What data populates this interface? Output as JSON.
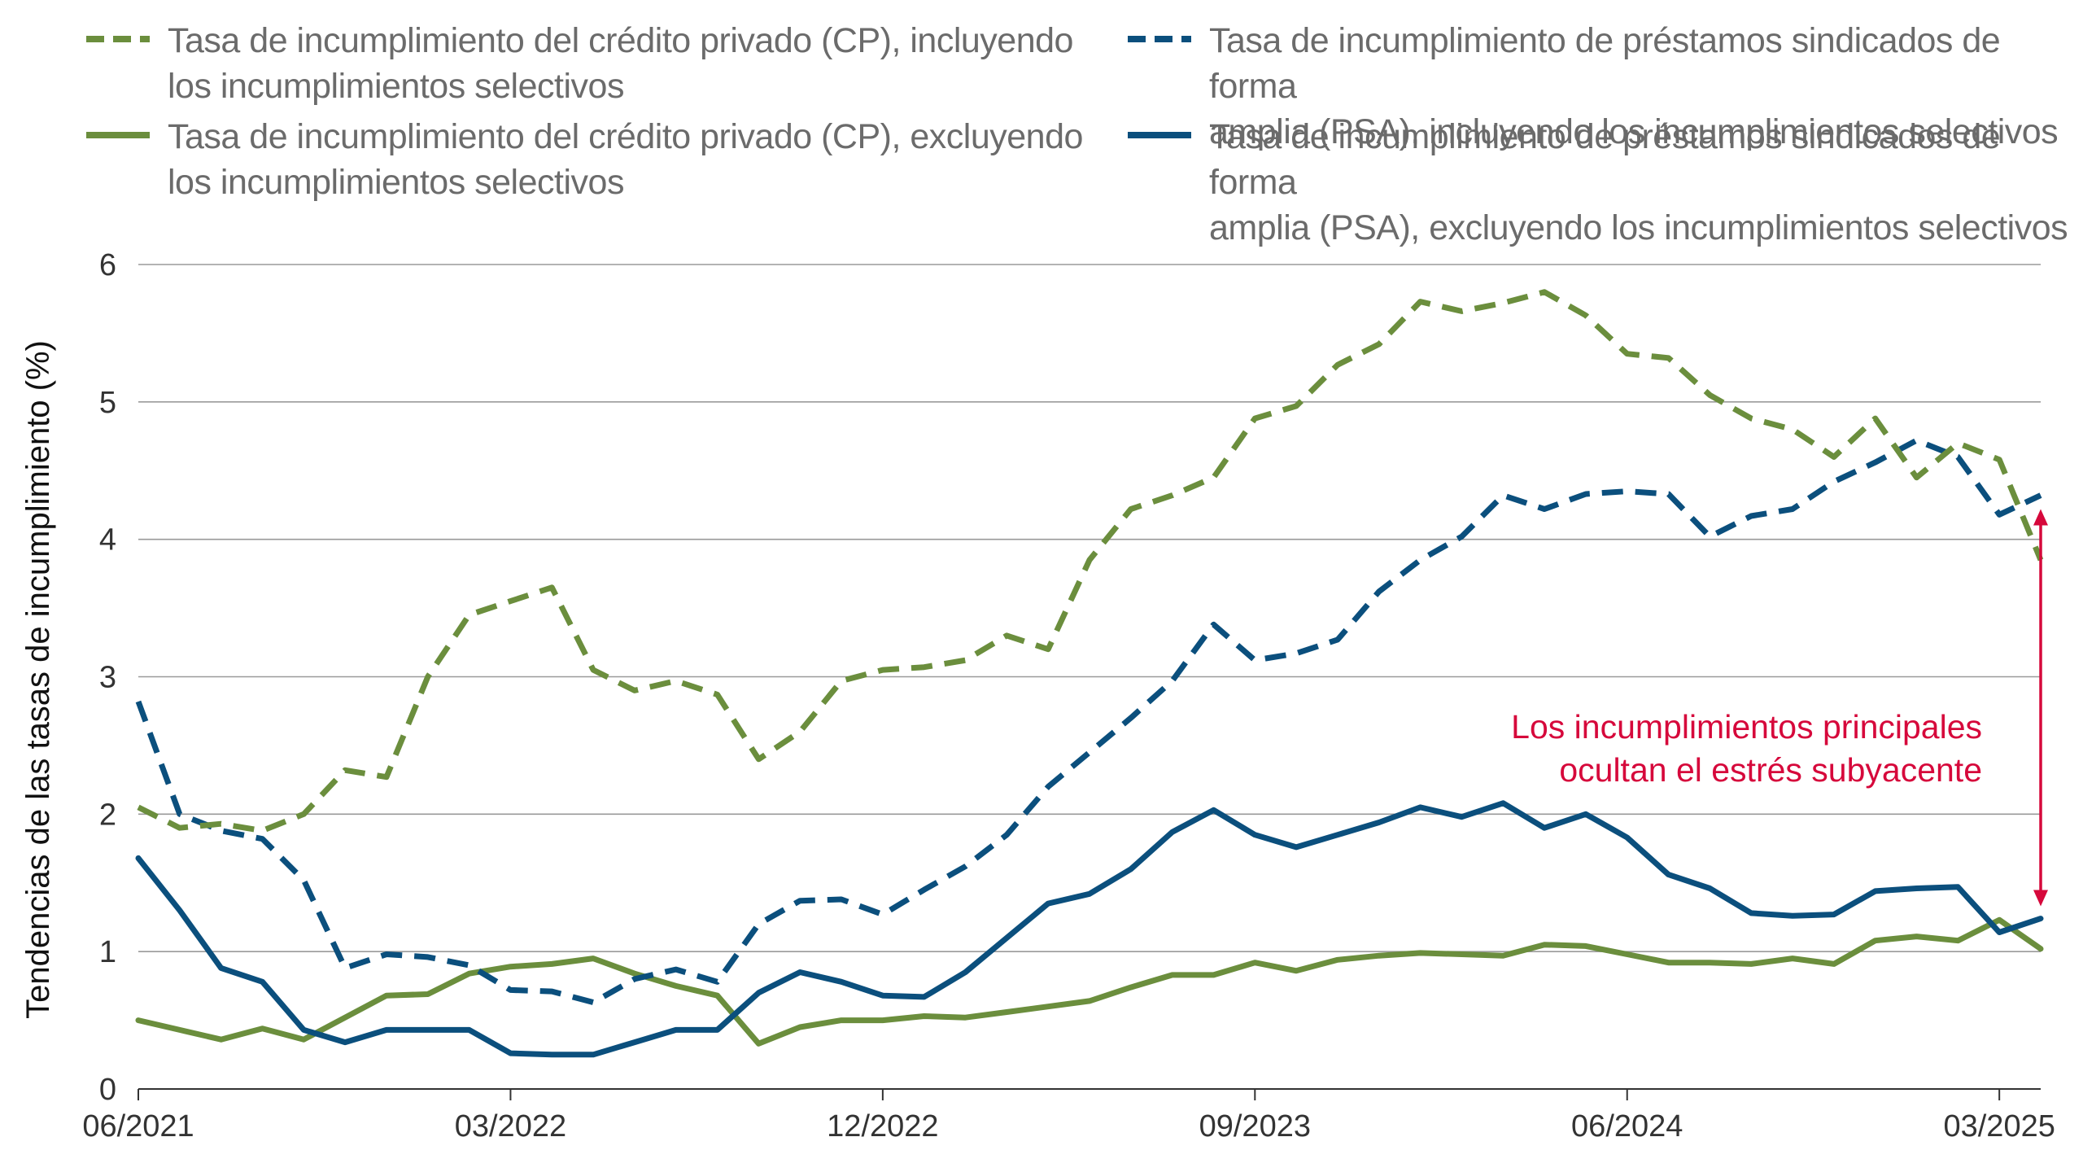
{
  "chart_data": {
    "type": "line",
    "title": "",
    "xlabel": "",
    "ylabel": "Tendencias de las tasas de incumplimiento (%)",
    "ylim": [
      0,
      6
    ],
    "yticks": [
      0,
      1,
      2,
      3,
      4,
      5,
      6
    ],
    "grid": "horizontal",
    "legend_position": "top",
    "x_tick_labels": [
      "06/2021",
      "03/2022",
      "12/2022",
      "09/2023",
      "06/2024",
      "03/2025"
    ],
    "x_tick_month_index": [
      0,
      9,
      18,
      27,
      36,
      45
    ],
    "x_start": "06/2021",
    "x_end": "03/2025",
    "series": [
      {
        "name": "Tasa de incumplimiento del crédito privado (CP), incluyendo los incumplimientos selectivos",
        "legend_lines": [
          "Tasa de incumplimiento del crédito privado (CP), incluyendo",
          "los incumplimientos selectivos"
        ],
        "color": "#6b8e3d",
        "style": "dashed",
        "values": [
          2.05,
          1.9,
          1.93,
          1.88,
          2.0,
          2.32,
          2.27,
          3.0,
          3.45,
          3.55,
          3.65,
          3.05,
          2.9,
          2.97,
          2.87,
          2.4,
          2.6,
          2.97,
          3.05,
          3.07,
          3.12,
          3.3,
          3.2,
          3.85,
          4.22,
          4.32,
          4.45,
          4.88,
          4.97,
          5.27,
          5.42,
          5.73,
          5.66,
          5.72,
          5.8,
          5.63,
          5.35,
          5.32,
          5.05,
          4.88,
          4.8,
          4.6,
          4.88,
          4.45,
          4.7,
          4.58,
          3.85
        ]
      },
      {
        "name": "Tasa de incumplimiento del crédito privado (CP), excluyendo los incumplimientos selectivos",
        "legend_lines": [
          "Tasa de incumplimiento del crédito privado (CP), excluyendo",
          "los incumplimientos selectivos"
        ],
        "color": "#6b8e3d",
        "style": "solid",
        "values": [
          0.5,
          0.43,
          0.36,
          0.44,
          0.36,
          0.52,
          0.68,
          0.69,
          0.84,
          0.89,
          0.91,
          0.95,
          0.84,
          0.75,
          0.68,
          0.33,
          0.45,
          0.5,
          0.5,
          0.53,
          0.52,
          0.56,
          0.6,
          0.64,
          0.74,
          0.83,
          0.83,
          0.92,
          0.86,
          0.94,
          0.97,
          0.99,
          0.98,
          0.97,
          1.05,
          1.04,
          0.98,
          0.92,
          0.92,
          0.91,
          0.95,
          0.91,
          1.08,
          1.11,
          1.08,
          1.23,
          1.02
        ]
      },
      {
        "name": "Tasa de incumplimiento de préstamos sindicados de forma amplia (PSA), incluyendo los incumplimientos selectivos",
        "legend_lines": [
          "Tasa de incumplimiento de préstamos sindicados de forma",
          "amplia (PSA), incluyendo los incumplimientos selectivos"
        ],
        "color": "#0b4f7d",
        "style": "dashed",
        "values": [
          2.82,
          2.0,
          1.88,
          1.82,
          1.52,
          0.88,
          0.98,
          0.96,
          0.9,
          0.72,
          0.71,
          0.63,
          0.8,
          0.87,
          0.78,
          1.2,
          1.37,
          1.38,
          1.27,
          1.45,
          1.62,
          1.85,
          2.2,
          2.45,
          2.7,
          2.97,
          3.38,
          3.12,
          3.17,
          3.27,
          3.62,
          3.85,
          4.02,
          4.32,
          4.22,
          4.33,
          4.35,
          4.33,
          4.02,
          4.17,
          4.22,
          4.42,
          4.56,
          4.72,
          4.6,
          4.18,
          4.32
        ]
      },
      {
        "name": "Tasa de incumplimiento de préstamos sindicados de forma amplia (PSA), excluyendo los incumplimientos selectivos",
        "legend_lines": [
          "Tasa de incumplimiento de préstamos sindicados de forma",
          "amplia (PSA), excluyendo los incumplimientos selectivos"
        ],
        "color": "#0b4f7d",
        "style": "solid",
        "values": [
          1.68,
          1.3,
          0.88,
          0.78,
          0.43,
          0.34,
          0.43,
          0.43,
          0.43,
          0.26,
          0.25,
          0.25,
          0.34,
          0.43,
          0.43,
          0.7,
          0.85,
          0.78,
          0.68,
          0.67,
          0.85,
          1.1,
          1.35,
          1.42,
          1.6,
          1.87,
          2.03,
          1.85,
          1.76,
          1.85,
          1.94,
          2.05,
          1.98,
          2.08,
          1.9,
          2.0,
          1.83,
          1.56,
          1.46,
          1.28,
          1.26,
          1.27,
          1.44,
          1.46,
          1.47,
          1.14,
          1.24
        ]
      }
    ],
    "annotation": {
      "lines": [
        "Los incumplimientos principales",
        "ocultan el estrés subyacente"
      ],
      "color": "#d6083b",
      "arrow_month_index": 46,
      "arrow_from_value": 4.22,
      "arrow_to_value": 1.33
    }
  }
}
